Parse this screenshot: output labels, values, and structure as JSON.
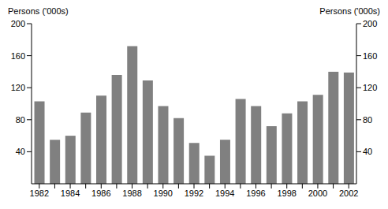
{
  "chart_data": {
    "type": "bar",
    "ylabel": "Persons ('000s)",
    "categories": [
      "1982",
      null,
      "1984",
      null,
      "1986",
      null,
      "1988",
      null,
      "1990",
      null,
      "1992",
      null,
      "1994",
      null,
      "1996",
      null,
      "1998",
      null,
      "2000",
      null,
      "2002"
    ],
    "values": [
      103,
      55,
      60,
      89,
      110,
      136,
      172,
      129,
      97,
      82,
      51,
      35,
      55,
      106,
      97,
      72,
      88,
      103,
      111,
      140,
      139
    ],
    "color": "#808080",
    "ylim": [
      0,
      200
    ],
    "yticks": [
      40,
      80,
      120,
      160,
      200
    ],
    "grid": false
  }
}
